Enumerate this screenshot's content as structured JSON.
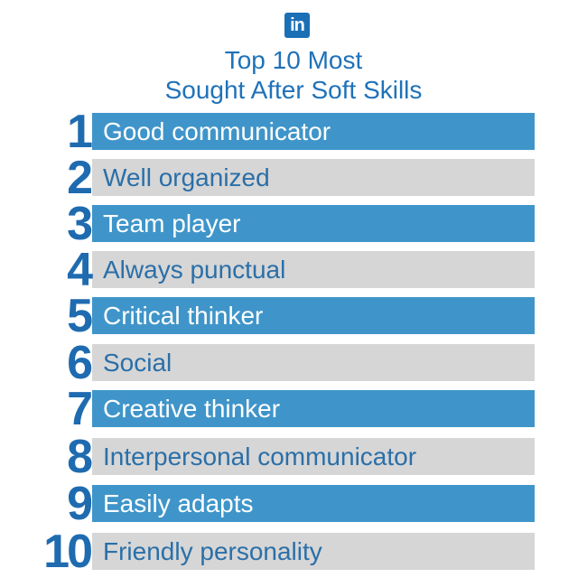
{
  "header": {
    "logo": "in",
    "title_lines": [
      "Top 10 Most",
      "Sought After Soft Skills"
    ]
  },
  "items": [
    {
      "rank": 1,
      "label": "Good communicator"
    },
    {
      "rank": 2,
      "label": "Well organized"
    },
    {
      "rank": 3,
      "label": "Team player"
    },
    {
      "rank": 4,
      "label": "Always punctual"
    },
    {
      "rank": 5,
      "label": "Critical thinker"
    },
    {
      "rank": 6,
      "label": "Social"
    },
    {
      "rank": 7,
      "label": "Creative thinker"
    },
    {
      "rank": 8,
      "label": "Interpersonal communicator"
    },
    {
      "rank": 9,
      "label": "Easily adapts"
    },
    {
      "rank": 10,
      "label": "Friendly personality"
    }
  ]
}
